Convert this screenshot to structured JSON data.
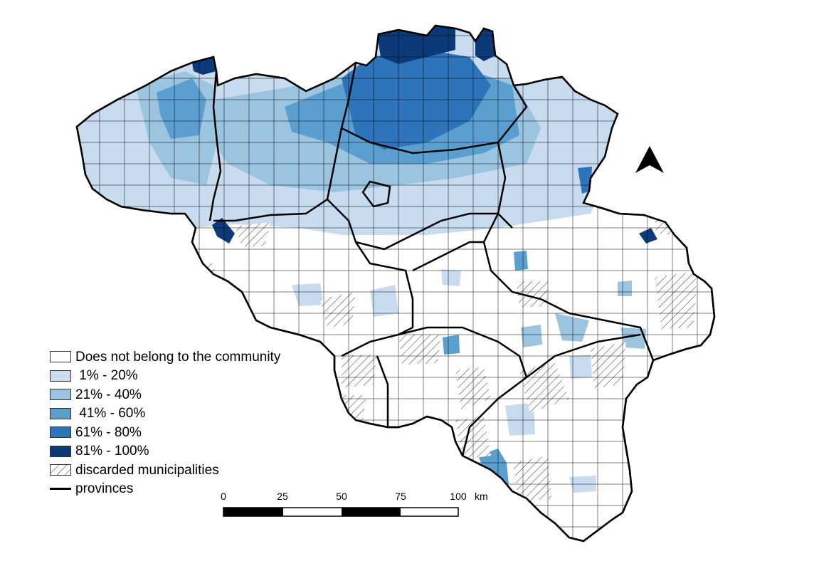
{
  "legend": {
    "items": [
      {
        "label": "Does not belong to the community",
        "color": "#ffffff",
        "pattern": "none"
      },
      {
        "label": " 1% - 20%",
        "color": "#c9dcef",
        "pattern": "none"
      },
      {
        "label": "21% - 40%",
        "color": "#9bc4e0",
        "pattern": "none"
      },
      {
        "label": " 41% - 60%",
        "color": "#5b9fd1",
        "pattern": "none"
      },
      {
        "label": "61% - 80%",
        "color": "#2d74bb",
        "pattern": "none"
      },
      {
        "label": "81% - 100%",
        "color": "#0c3a78",
        "pattern": "none"
      },
      {
        "label": "discarded municipalities",
        "color": "#ffffff",
        "pattern": "hatch"
      }
    ],
    "provinces_label": "provinces"
  },
  "scale_bar": {
    "ticks": [
      "0",
      "25",
      "50",
      "75",
      "100"
    ],
    "unit": "km"
  },
  "north_arrow": {
    "icon": "north-arrow-icon"
  }
}
